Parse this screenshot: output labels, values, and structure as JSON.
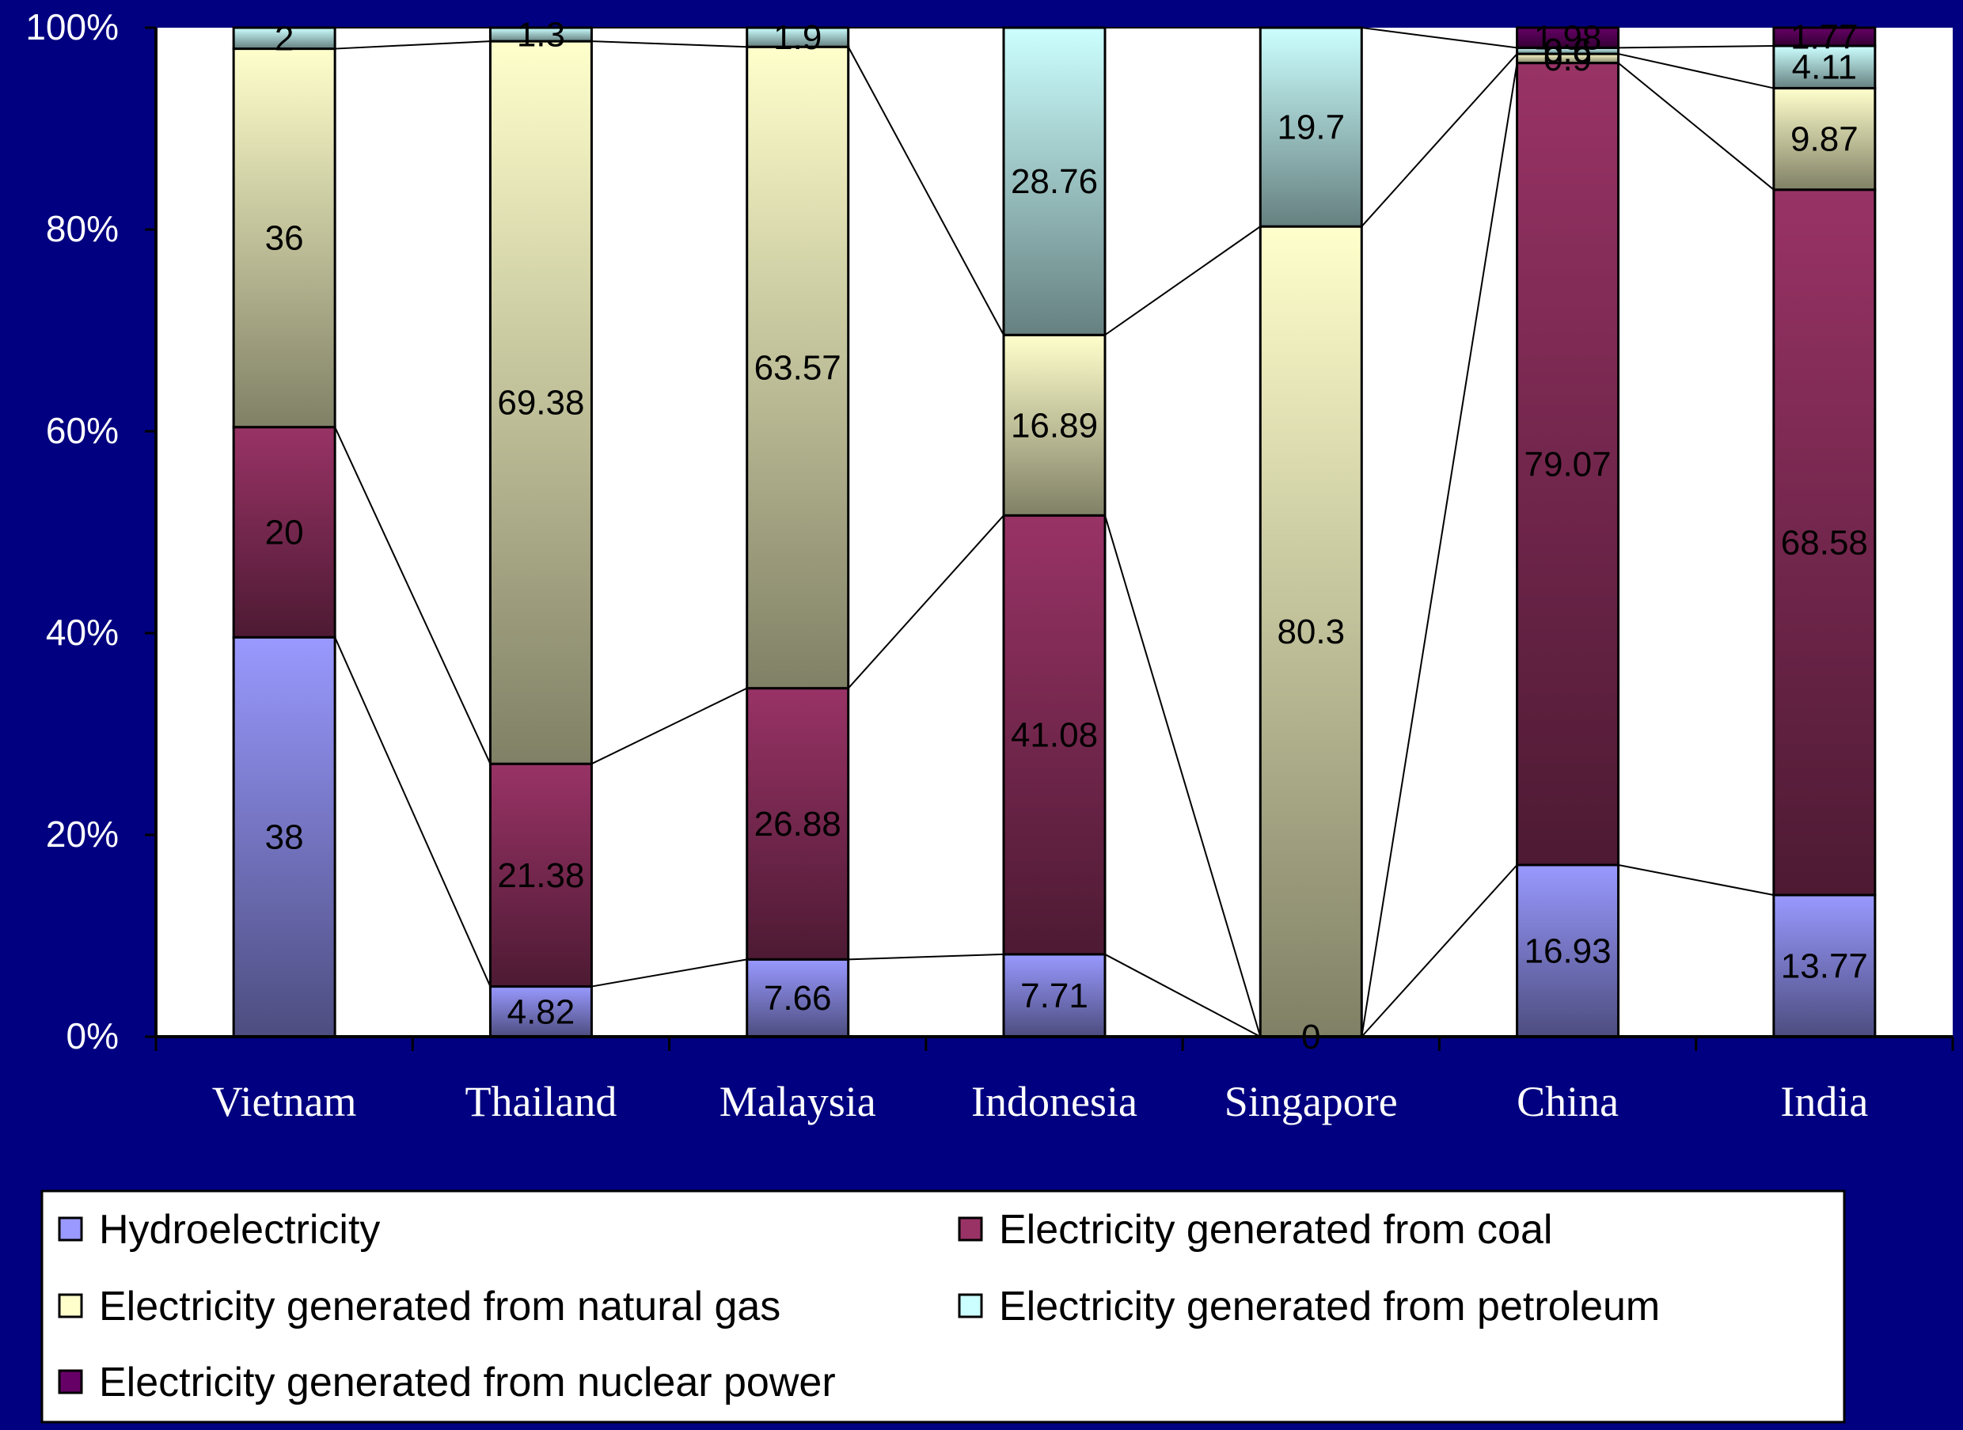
{
  "chart_data": {
    "type": "bar",
    "stacked": "percent",
    "categories": [
      "Vietnam",
      "Thailand",
      "Malaysia",
      "Indonesia",
      "Singapore",
      "China",
      "India"
    ],
    "series": [
      {
        "name": "Hydroelectricity",
        "color": "#9999ff",
        "values": [
          38,
          4.82,
          7.66,
          7.71,
          0,
          16.93,
          13.77
        ]
      },
      {
        "name": "Electricity generated from coal",
        "color": "#993366",
        "values": [
          20,
          21.38,
          26.88,
          41.08,
          0,
          79.07,
          68.58
        ]
      },
      {
        "name": "Electricity generated from natural gas",
        "color": "#ffffcc",
        "values": [
          36,
          69.38,
          63.57,
          16.89,
          80.3,
          0.9,
          9.87
        ]
      },
      {
        "name": "Electricity generated from petroleum",
        "color": "#ccffff",
        "values": [
          2,
          1.3,
          1.9,
          28.76,
          19.7,
          0.6,
          4.11
        ]
      },
      {
        "name": "Electricity generated from nuclear power",
        "color": "#660066",
        "values": [
          0,
          0,
          0,
          0,
          0,
          1.98,
          1.77
        ]
      }
    ],
    "y_tick_labels": [
      "0%",
      "20%",
      "40%",
      "60%",
      "80%",
      "100%"
    ],
    "ylim": [
      0,
      100
    ],
    "series_lines": true,
    "legend_position": "bottom",
    "background": "#000080",
    "plot_background": "#ffffff"
  }
}
